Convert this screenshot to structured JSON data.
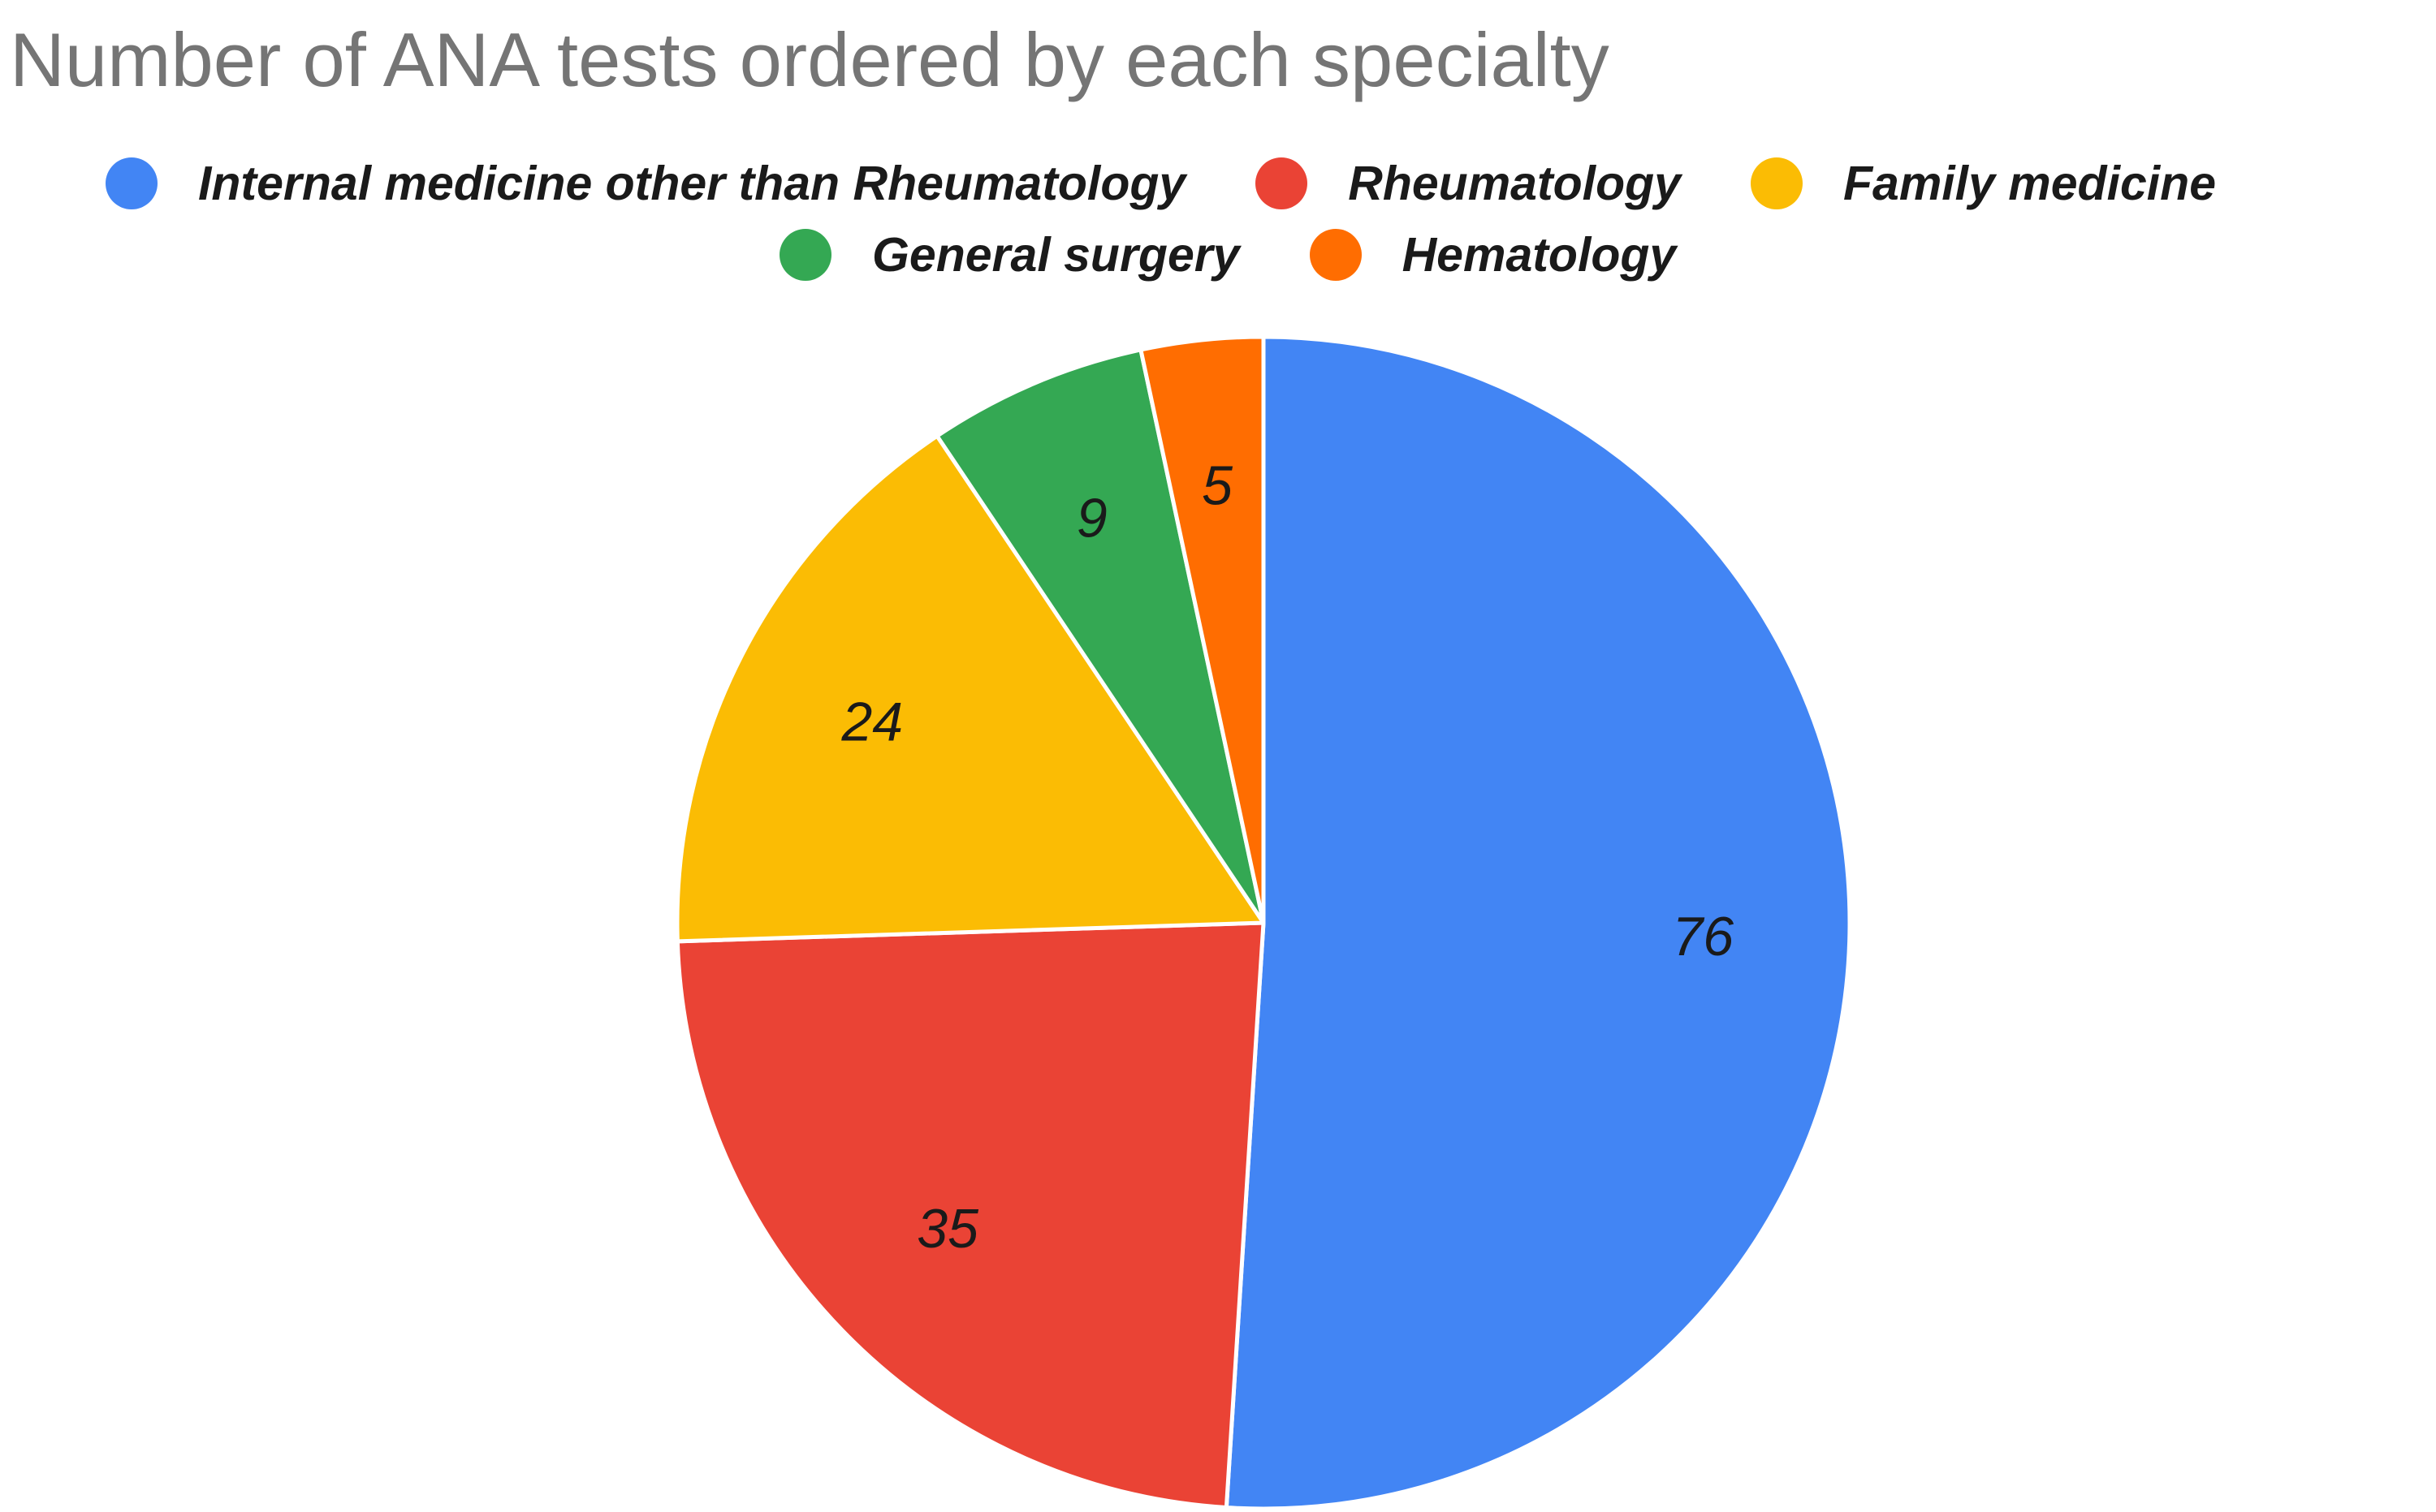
{
  "chart_data": {
    "type": "pie",
    "title": "Number of ANA tests ordered by each specialty",
    "legend_position": "top",
    "slices": [
      {
        "label": "Internal medicine other than Rheumatology",
        "value": 76,
        "color": "#4285f4"
      },
      {
        "label": "Rheumatology",
        "value": 35,
        "color": "#ea4335"
      },
      {
        "label": "Family medicine",
        "value": 24,
        "color": "#fbbc04"
      },
      {
        "label": "General surgery",
        "value": 9,
        "color": "#34a853"
      },
      {
        "label": "Hematology",
        "value": 5,
        "color": "#ff6d01"
      }
    ]
  }
}
